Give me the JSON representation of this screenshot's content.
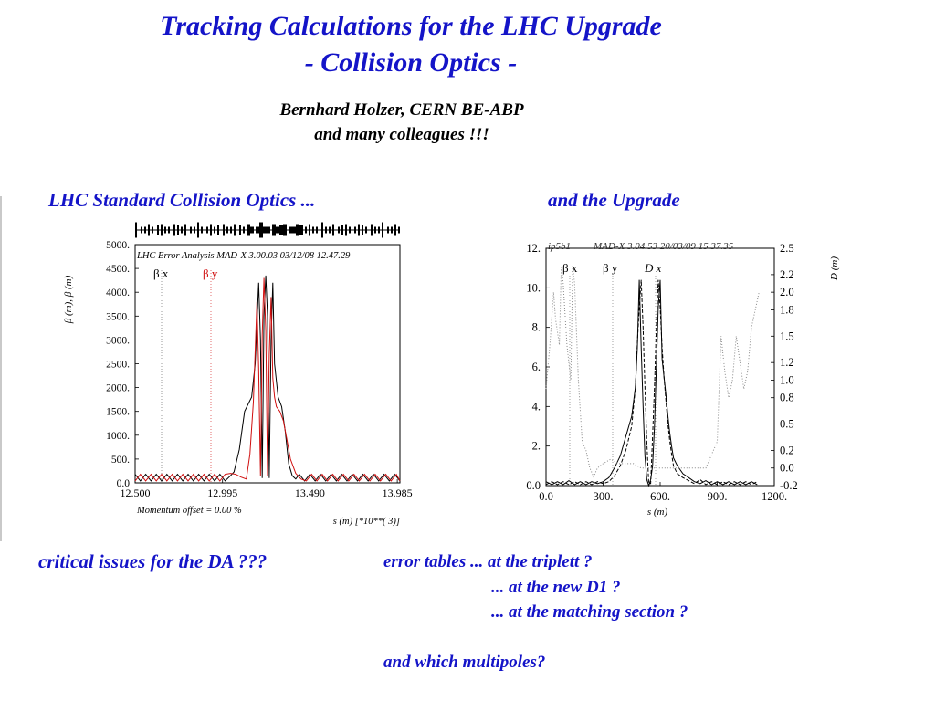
{
  "title": {
    "line1": "Tracking Calculations for the LHC Upgrade",
    "line2": "- Collision Optics -"
  },
  "author": {
    "line1": "Bernhard Holzer, CERN BE-ABP",
    "line2": "and many colleagues !!!"
  },
  "captions": {
    "left": "LHC Standard Collision Optics  ...",
    "right": "and the Upgrade"
  },
  "bottom": {
    "issue": "critical issues for the DA ???",
    "error_tables": "error tables  ...  at the triplett ?",
    "new_d1": "...  at the new D1 ?",
    "matching": "...  at the matching section ?",
    "multipoles": "and which multipoles?"
  },
  "colors": {
    "accent": "#1414c8",
    "beta_x": "#000000",
    "beta_y": "#d01010",
    "dispersion": "#888888"
  },
  "chart_data": [
    {
      "type": "line",
      "header": "LHC Error Analysis  MAD-X 3.00.03  03/12/08 12.47.29",
      "ylabel": "β (m), β (m)",
      "legend": [
        "β x",
        "β y"
      ],
      "footer_left": "Momentum offset =    0.00 %",
      "footer_right": "s (m)   [*10**(  3)]",
      "xlim": [
        12.5,
        14.0
      ],
      "ylim": [
        0,
        5000
      ],
      "xticks": [
        "12.500",
        "12.995",
        "13.490",
        "13.985"
      ],
      "xtick_values": [
        12.5,
        12.995,
        13.49,
        13.985
      ],
      "yticks": [
        "0.0",
        "500.",
        "1000.",
        "1500.",
        "2000.",
        "2500.",
        "3000.",
        "3500.",
        "4000.",
        "4500.",
        "5000."
      ],
      "ytick_values": [
        0,
        500,
        1000,
        1500,
        2000,
        2500,
        3000,
        3500,
        4000,
        4500,
        5000
      ],
      "series": [
        {
          "name": "β x",
          "x": [
            12.5,
            12.53,
            12.56,
            12.59,
            12.62,
            12.65,
            12.68,
            12.71,
            12.74,
            12.77,
            12.8,
            12.83,
            12.86,
            12.89,
            12.92,
            12.95,
            12.98,
            13.01,
            13.04,
            13.06,
            13.09,
            13.12,
            13.14,
            13.16,
            13.18,
            13.2,
            13.21,
            13.22,
            13.23,
            13.24,
            13.25,
            13.26,
            13.27,
            13.28,
            13.29,
            13.31,
            13.33,
            13.35,
            13.37,
            13.39,
            13.41,
            13.43,
            13.46,
            13.49,
            13.52,
            13.55,
            13.58,
            13.61,
            13.64,
            13.67,
            13.7,
            13.73,
            13.76,
            13.79,
            13.82,
            13.85,
            13.88,
            13.91,
            13.94,
            13.97,
            14.0
          ],
          "values": [
            180,
            40,
            180,
            40,
            180,
            40,
            180,
            40,
            180,
            40,
            180,
            40,
            180,
            40,
            180,
            40,
            180,
            40,
            150,
            230,
            700,
            1500,
            1650,
            1800,
            2500,
            4200,
            3000,
            100,
            3500,
            4350,
            3500,
            100,
            3000,
            4200,
            2500,
            1800,
            1600,
            1100,
            400,
            150,
            80,
            180,
            40,
            180,
            40,
            180,
            40,
            180,
            40,
            180,
            40,
            180,
            40,
            180,
            40,
            180,
            40,
            180,
            40,
            180,
            40
          ]
        },
        {
          "name": "β y",
          "x": [
            12.5,
            12.53,
            12.56,
            12.59,
            12.62,
            12.65,
            12.68,
            12.71,
            12.74,
            12.77,
            12.8,
            12.83,
            12.86,
            12.89,
            12.92,
            12.95,
            12.98,
            13.01,
            13.04,
            13.07,
            13.1,
            13.13,
            13.15,
            13.17,
            13.19,
            13.2,
            13.21,
            13.22,
            13.23,
            13.24,
            13.25,
            13.26,
            13.27,
            13.28,
            13.29,
            13.3,
            13.32,
            13.34,
            13.36,
            13.38,
            13.41,
            13.44,
            13.47,
            13.5,
            13.53,
            13.56,
            13.59,
            13.62,
            13.65,
            13.68,
            13.71,
            13.74,
            13.77,
            13.8,
            13.83,
            13.86,
            13.89,
            13.92,
            13.95,
            13.98,
            14.0
          ],
          "values": [
            40,
            180,
            40,
            180,
            40,
            180,
            40,
            180,
            40,
            180,
            40,
            180,
            40,
            180,
            40,
            180,
            40,
            180,
            200,
            180,
            120,
            80,
            600,
            1700,
            3800,
            2400,
            150,
            3100,
            4300,
            3200,
            150,
            2700,
            3900,
            2200,
            1800,
            1600,
            1500,
            1300,
            900,
            500,
            200,
            80,
            40,
            180,
            40,
            180,
            40,
            180,
            40,
            180,
            40,
            180,
            40,
            180,
            40,
            180,
            40,
            180,
            40,
            180,
            40
          ]
        }
      ]
    },
    {
      "type": "line",
      "header_left": "ip5b1",
      "header": "MAD-X 3.04.53  20/03/09 15.37.35",
      "legend": [
        "β x",
        "β y",
        "D x"
      ],
      "xlabel": "s (m)",
      "y2label": "D (m)",
      "xlim": [
        0,
        1200
      ],
      "ylim": [
        0,
        12
      ],
      "y2lim": [
        -0.2,
        2.5
      ],
      "xticks": [
        "0.0",
        "300.",
        "600.",
        "900.",
        "1200."
      ],
      "xtick_values": [
        0,
        300,
        600,
        900,
        1200
      ],
      "yticks": [
        "0.0",
        "2.",
        "4.",
        "6.",
        "8.",
        "10.",
        "12."
      ],
      "ytick_values": [
        0,
        2,
        4,
        6,
        8,
        10,
        12
      ],
      "y2ticks": [
        "-0.2",
        "0.0",
        "0.2",
        "0.5",
        "0.8",
        "1.0",
        "1.2",
        "1.5",
        "1.8",
        "2.0",
        "2.2",
        "2.5"
      ],
      "y2tick_values": [
        -0.2,
        0.0,
        0.2,
        0.5,
        0.8,
        1.0,
        1.2,
        1.5,
        1.8,
        2.0,
        2.2,
        2.5
      ],
      "series": [
        {
          "name": "β x",
          "axis": "left",
          "style": "solid",
          "x": [
            0,
            30,
            60,
            90,
            120,
            150,
            180,
            210,
            240,
            270,
            300,
            330,
            360,
            390,
            420,
            450,
            470,
            480,
            490,
            500,
            510,
            520,
            530,
            540,
            550,
            560,
            570,
            580,
            590,
            600,
            610,
            620,
            630,
            640,
            650,
            660,
            670,
            690,
            720,
            750,
            780,
            810,
            840,
            870,
            900,
            930,
            960,
            990,
            1020,
            1050,
            1080,
            1110
          ],
          "values": [
            0.2,
            0.05,
            0.2,
            0.05,
            0.25,
            0.05,
            0.2,
            0.05,
            0.2,
            0.1,
            0.2,
            0.4,
            0.9,
            1.5,
            2.5,
            3.5,
            5,
            7,
            10.4,
            7,
            4,
            1.5,
            0.3,
            0,
            0.3,
            1,
            3,
            6,
            9,
            10.4,
            6.4,
            5.5,
            4.6,
            3.6,
            2.7,
            2,
            1.4,
            1,
            0.6,
            0.4,
            0.2,
            0.1,
            0.25,
            0.05,
            0.2,
            0.05,
            0.2,
            0.05,
            0.2,
            0.05,
            0.2,
            0.05
          ]
        },
        {
          "name": "β y",
          "axis": "left",
          "style": "dashed",
          "x": [
            0,
            30,
            60,
            90,
            120,
            150,
            180,
            210,
            240,
            270,
            300,
            330,
            360,
            390,
            420,
            450,
            470,
            480,
            490,
            500,
            510,
            520,
            530,
            540,
            550,
            560,
            570,
            580,
            590,
            600,
            610,
            620,
            630,
            640,
            650,
            660,
            670,
            690,
            720,
            750,
            780,
            810,
            840,
            870,
            900,
            930,
            960,
            990,
            1020,
            1050,
            1080,
            1110
          ],
          "values": [
            0.05,
            0.2,
            0.05,
            0.2,
            0.05,
            0.2,
            0.05,
            0.2,
            0.05,
            0.2,
            0.1,
            0.2,
            0.5,
            1,
            1.8,
            3,
            5,
            7.2,
            9,
            10.4,
            8,
            5,
            2.2,
            0.1,
            0.1,
            2.5,
            5,
            8,
            10.4,
            9,
            7,
            5.5,
            4.3,
            3.2,
            2.3,
            1.6,
            1,
            0.6,
            0.4,
            0.25,
            0.1,
            0.3,
            0.05,
            0.2,
            0.05,
            0.2,
            0.05,
            0.2,
            0.05,
            0.2,
            0.05,
            0.2
          ]
        },
        {
          "name": "D x",
          "axis": "right",
          "style": "dotted",
          "x": [
            0,
            20,
            40,
            50,
            70,
            80,
            90,
            110,
            130,
            140,
            150,
            170,
            190,
            210,
            230,
            250,
            270,
            300,
            340,
            380,
            420,
            460,
            500,
            540,
            580,
            620,
            660,
            700,
            740,
            780,
            820,
            840,
            860,
            880,
            900,
            920,
            940,
            960,
            980,
            1000,
            1020,
            1040,
            1060,
            1080,
            1100,
            1120
          ],
          "values": [
            0.9,
            1.4,
            2.0,
            1.7,
            1.4,
            2.3,
            2.1,
            1.4,
            1.0,
            2.3,
            2.1,
            1.0,
            0.3,
            0.2,
            0.0,
            -0.1,
            0.0,
            0.05,
            0.1,
            0.05,
            0.05,
            0.05,
            0.0,
            0.0,
            0.0,
            0.0,
            0.0,
            0.0,
            0.0,
            0.0,
            0.0,
            0.0,
            0.1,
            0.2,
            0.3,
            1.5,
            1.1,
            0.8,
            1.0,
            1.5,
            1.2,
            0.9,
            1.1,
            1.6,
            1.8,
            2.0
          ]
        }
      ]
    }
  ]
}
